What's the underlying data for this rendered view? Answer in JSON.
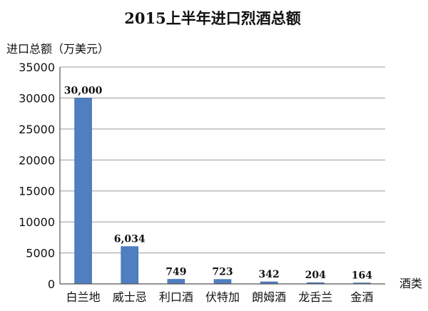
{
  "chart_data": {
    "type": "bar",
    "title": "2015上半年进口烈酒总额",
    "ylabel": "进口总额（万美元）",
    "xlabel": "酒类",
    "categories": [
      "白兰地",
      "威士忌",
      "利口酒",
      "伏特加",
      "朗姆酒",
      "龙舌兰",
      "金酒"
    ],
    "values": [
      30000,
      6034,
      749,
      723,
      342,
      204,
      164
    ],
    "data_labels": [
      "30,000",
      "6,034",
      "749",
      "723",
      "342",
      "204",
      "164"
    ],
    "yticks": [
      "0",
      "5000",
      "10000",
      "15000",
      "20000",
      "25000",
      "30000",
      "35000"
    ],
    "ylim": [
      0,
      35000
    ],
    "grid": true,
    "legend": "none",
    "bar_color": "#4f7fc1"
  }
}
